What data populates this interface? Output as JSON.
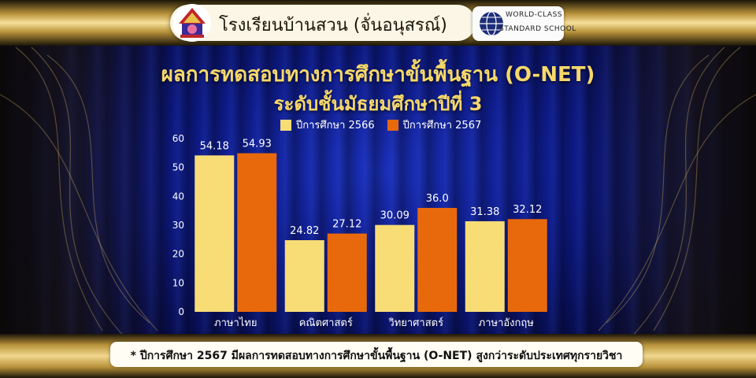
{
  "header": {
    "school_name": "โรงเรียนบ้านสวน (จั่นอนุสรณ์)",
    "badge_line1": "WORLD-CLASS",
    "badge_line2": "STANDARD SCHOOL"
  },
  "colors": {
    "series_2566": "#f8dd76",
    "series_2567": "#e8690c",
    "title": "#f6d86a"
  },
  "chart_data": {
    "type": "bar",
    "title": "ผลการทดสอบทางการศึกษาขั้นพื้นฐาน (O-NET)",
    "subtitle": "ระดับชั้นมัธยมศึกษาปีที่ 3",
    "categories": [
      "ภาษาไทย",
      "คณิตศาสตร์",
      "วิทยาศาสตร์",
      "ภาษาอังกฤษ"
    ],
    "series": [
      {
        "name": "ปีการศึกษา 2566",
        "values": [
          54.18,
          24.82,
          30.09,
          31.38
        ],
        "labels": [
          "54.18",
          "24.82",
          "30.09",
          "31.38"
        ]
      },
      {
        "name": "ปีการศึกษา 2567",
        "values": [
          54.93,
          27.12,
          36.0,
          32.12
        ],
        "labels": [
          "54.93",
          "27.12",
          "36.0",
          "32.12"
        ]
      }
    ],
    "yticks": [
      "0",
      "10",
      "20",
      "30",
      "40",
      "50",
      "60"
    ],
    "ylim": [
      0,
      60
    ],
    "xlabel": "",
    "ylabel": "",
    "legend": "top-center",
    "grid": false
  },
  "footer": {
    "note": "* ปีการศึกษา 2567 มีผลการทดสอบทางการศึกษาขั้นพื้นฐาน (O-NET) สูงกว่าระดับประเทศทุกรายวิชา"
  }
}
